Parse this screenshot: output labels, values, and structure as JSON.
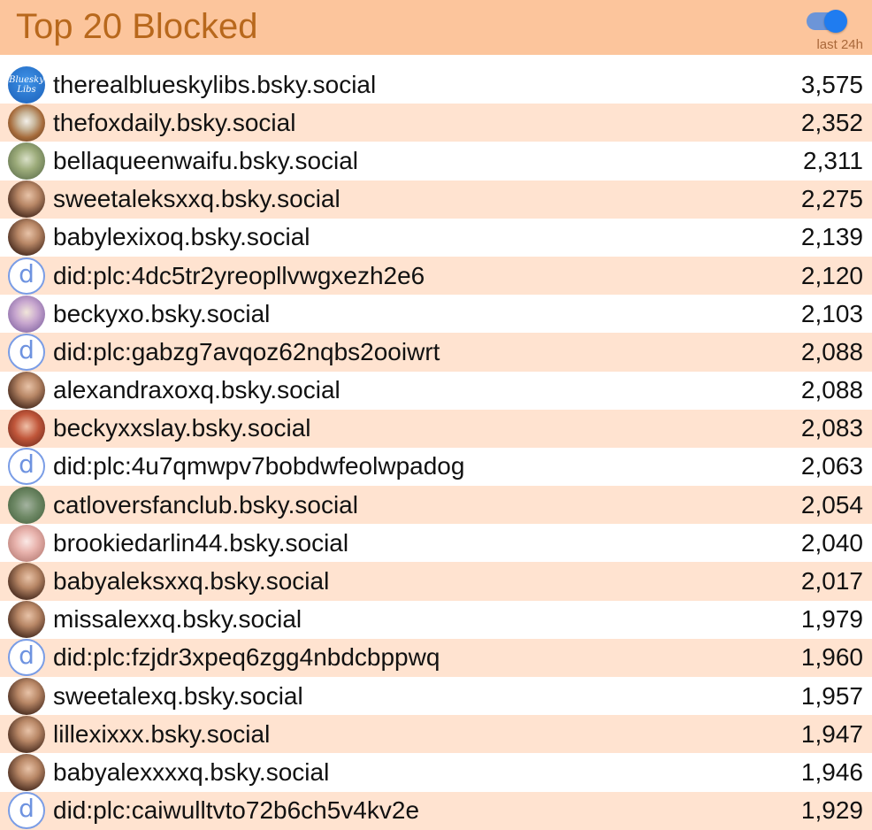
{
  "header": {
    "title": "Top 20 Blocked",
    "toggle_label": "last 24h",
    "toggle_on": true
  },
  "colors": {
    "header_bg": "#fcc59c",
    "title": "#b8681c",
    "row_alt": "#ffe3d0",
    "toggle_knob": "#1f7cf0"
  },
  "rows": [
    {
      "handle": "therealblueskylibs.bsky.social",
      "count": "3,575",
      "avatar": "libs",
      "avatar_text_1": "Bluesky",
      "avatar_text_2": "Libs"
    },
    {
      "handle": "thefoxdaily.bsky.social",
      "count": "2,352",
      "avatar": "fox"
    },
    {
      "handle": "bellaqueenwaifu.bsky.social",
      "count": "2,311",
      "avatar": "scenery"
    },
    {
      "handle": "sweetaleksxxq.bsky.social",
      "count": "2,275",
      "avatar": "photo"
    },
    {
      "handle": "babylexixoq.bsky.social",
      "count": "2,139",
      "avatar": "photo"
    },
    {
      "handle": "did:plc:4dc5tr2yreopllvwgxezh2e6",
      "count": "2,120",
      "avatar": "did",
      "avatar_letter": "d"
    },
    {
      "handle": "beckyxo.bsky.social",
      "count": "2,103",
      "avatar": "blonde"
    },
    {
      "handle": "did:plc:gabzg7avqoz62nqbs2ooiwrt",
      "count": "2,088",
      "avatar": "did",
      "avatar_letter": "d"
    },
    {
      "handle": "alexandraxoxq.bsky.social",
      "count": "2,088",
      "avatar": "photo"
    },
    {
      "handle": "beckyxxslay.bsky.social",
      "count": "2,083",
      "avatar": "red"
    },
    {
      "handle": "did:plc:4u7qmwpv7bobdwfeolwpadog",
      "count": "2,063",
      "avatar": "did",
      "avatar_letter": "d"
    },
    {
      "handle": "catloversfanclub.bsky.social",
      "count": "2,054",
      "avatar": "cat"
    },
    {
      "handle": "brookiedarlin44.bsky.social",
      "count": "2,040",
      "avatar": "pink"
    },
    {
      "handle": "babyaleksxxq.bsky.social",
      "count": "2,017",
      "avatar": "photo"
    },
    {
      "handle": "missalexxq.bsky.social",
      "count": "1,979",
      "avatar": "photo"
    },
    {
      "handle": "did:plc:fzjdr3xpeq6zgg4nbdcbppwq",
      "count": "1,960",
      "avatar": "did",
      "avatar_letter": "d"
    },
    {
      "handle": "sweetalexq.bsky.social",
      "count": "1,957",
      "avatar": "photo"
    },
    {
      "handle": "lillexixxx.bsky.social",
      "count": "1,947",
      "avatar": "photo"
    },
    {
      "handle": "babyalexxxxq.bsky.social",
      "count": "1,946",
      "avatar": "photo"
    },
    {
      "handle": "did:plc:caiwulltvto72b6ch5v4kv2e",
      "count": "1,929",
      "avatar": "did",
      "avatar_letter": "d"
    }
  ]
}
